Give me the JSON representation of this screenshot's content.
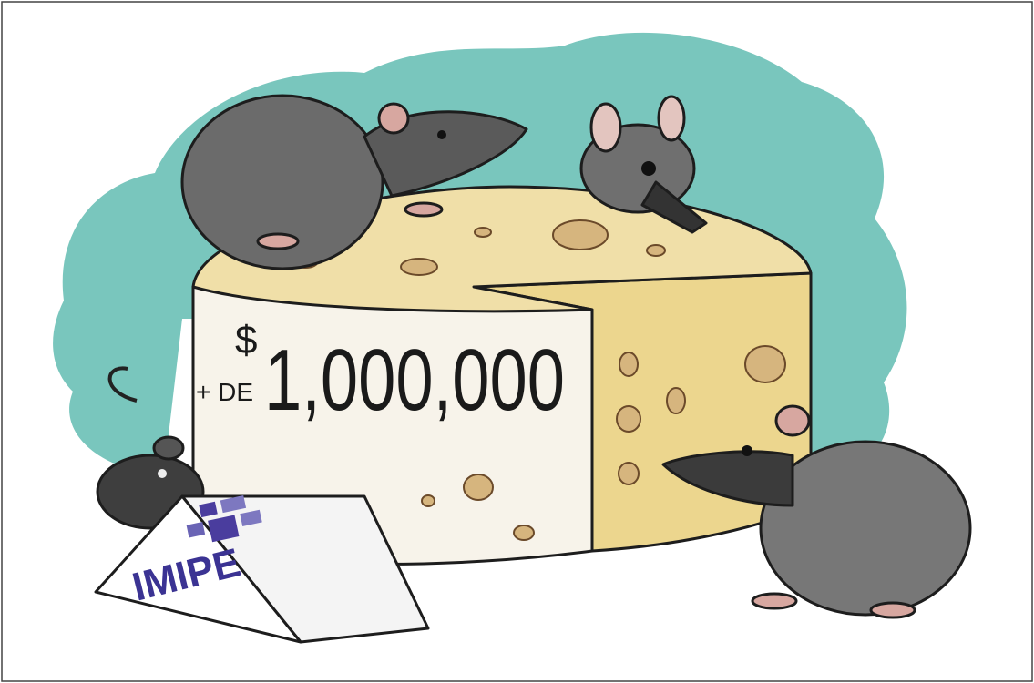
{
  "cheese_label": {
    "prefix": "+ DE",
    "currency": "$",
    "amount": "1,000,000"
  },
  "sign": {
    "text": "IMIPE"
  }
}
